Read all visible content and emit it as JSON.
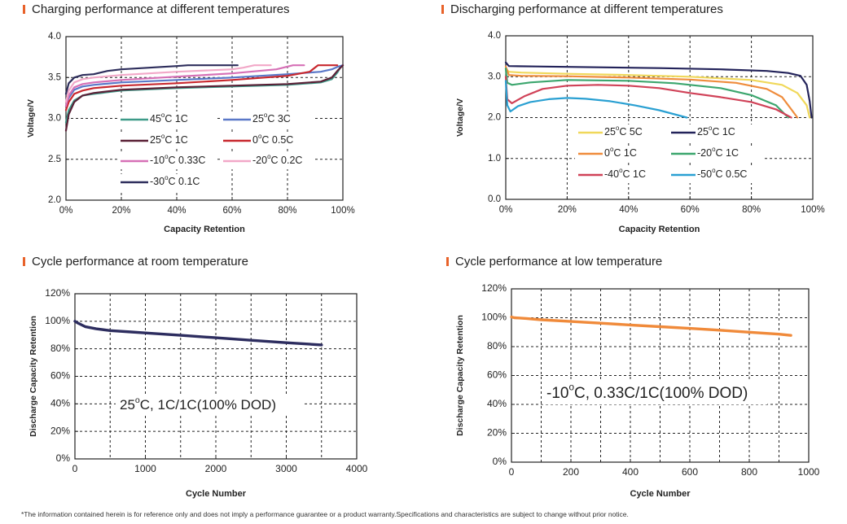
{
  "footnote": "*The information contained herein is for reference only and does not imply a performance guarantee or a product warranty.Specifications and characteristics are subject to change without prior notice.",
  "chart_data": [
    {
      "id": "charge",
      "type": "line",
      "title": "Charging performance at different temperatures",
      "xlabel": "Capacity Retention",
      "ylabel": "Voltage/V",
      "xlim": [
        0,
        100
      ],
      "ylim": [
        2.0,
        4.0
      ],
      "xticks": [
        0,
        20,
        40,
        60,
        80,
        100
      ],
      "xtick_labels": [
        "0%",
        "20%",
        "40%",
        "60%",
        "80%",
        "100%"
      ],
      "yticks": [
        2.0,
        2.5,
        3.0,
        3.5,
        4.0
      ],
      "ytick_labels": [
        "2.0",
        "2.5",
        "3.0",
        "3.5",
        "4.0"
      ],
      "grid": true,
      "legend_position": "center-left",
      "series": [
        {
          "name": "45°C 1C",
          "color": "#3d9a88",
          "x": [
            0,
            1,
            3,
            6,
            10,
            20,
            40,
            60,
            80,
            92,
            96,
            98,
            99
          ],
          "y": [
            2.95,
            3.1,
            3.22,
            3.28,
            3.3,
            3.34,
            3.37,
            3.39,
            3.41,
            3.44,
            3.48,
            3.56,
            3.62
          ]
        },
        {
          "name": "25°C 3C",
          "color": "#5a78c8",
          "x": [
            0,
            1,
            3,
            6,
            10,
            20,
            40,
            60,
            80,
            92,
            96,
            98,
            100
          ],
          "y": [
            3.15,
            3.25,
            3.35,
            3.39,
            3.41,
            3.44,
            3.47,
            3.5,
            3.54,
            3.57,
            3.6,
            3.63,
            3.65
          ]
        },
        {
          "name": "25°C 1C",
          "color": "#5a2036",
          "x": [
            0,
            1,
            3,
            6,
            10,
            20,
            40,
            60,
            80,
            92,
            96,
            98,
            100
          ],
          "y": [
            2.85,
            3.05,
            3.2,
            3.28,
            3.31,
            3.35,
            3.38,
            3.4,
            3.42,
            3.45,
            3.5,
            3.58,
            3.65
          ]
        },
        {
          "name": "0°C 0.5C",
          "color": "#c8282e",
          "x": [
            0,
            1,
            3,
            6,
            10,
            20,
            40,
            60,
            80,
            88,
            91,
            95,
            98
          ],
          "y": [
            3.1,
            3.2,
            3.3,
            3.34,
            3.37,
            3.4,
            3.43,
            3.47,
            3.52,
            3.57,
            3.65,
            3.65,
            3.65
          ]
        },
        {
          "name": "-10°C 0.33C",
          "color": "#d670b6",
          "x": [
            0,
            1,
            3,
            6,
            10,
            20,
            40,
            60,
            76,
            82,
            86
          ],
          "y": [
            3.15,
            3.28,
            3.38,
            3.42,
            3.44,
            3.47,
            3.51,
            3.55,
            3.6,
            3.65,
            3.65
          ]
        },
        {
          "name": "-20°C 0.2C",
          "color": "#f2a8c8",
          "x": [
            0,
            1,
            3,
            6,
            10,
            20,
            40,
            60,
            64,
            68,
            74
          ],
          "y": [
            3.2,
            3.34,
            3.44,
            3.48,
            3.5,
            3.53,
            3.57,
            3.6,
            3.62,
            3.65,
            3.65
          ]
        },
        {
          "name": "-30°C 0.1C",
          "color": "#2e2e5c",
          "x": [
            0,
            1,
            3,
            6,
            10,
            15,
            20,
            30,
            40,
            44,
            50,
            62
          ],
          "y": [
            3.3,
            3.43,
            3.5,
            3.53,
            3.54,
            3.58,
            3.6,
            3.62,
            3.64,
            3.65,
            3.65,
            3.65
          ]
        }
      ]
    },
    {
      "id": "discharge",
      "type": "line",
      "title": "Discharging performance at different temperatures",
      "xlabel": "Capacity Retention",
      "ylabel": "Voltage/V",
      "xlim": [
        0,
        100
      ],
      "ylim": [
        0.0,
        4.0
      ],
      "xticks": [
        0,
        20,
        40,
        60,
        80,
        100
      ],
      "xtick_labels": [
        "0%",
        "20%",
        "40%",
        "60%",
        "80%",
        "100%"
      ],
      "yticks": [
        0.0,
        1.0,
        2.0,
        3.0,
        4.0
      ],
      "ytick_labels": [
        "0.0",
        "1.0",
        "2.0",
        "3.0",
        "4.0"
      ],
      "grid": true,
      "legend_position": "bottom",
      "series": [
        {
          "name": "25°C 5C",
          "color": "#f0d85a",
          "x": [
            0,
            1,
            5,
            20,
            40,
            60,
            80,
            90,
            95,
            98,
            99
          ],
          "y": [
            3.2,
            3.12,
            3.1,
            3.07,
            3.04,
            3.0,
            2.92,
            2.8,
            2.6,
            2.3,
            2.0
          ]
        },
        {
          "name": "25°C 1C",
          "color": "#23235a",
          "x": [
            0,
            1,
            10,
            30,
            50,
            70,
            85,
            92,
            96,
            98,
            99,
            99.6
          ],
          "y": [
            3.35,
            3.26,
            3.25,
            3.23,
            3.21,
            3.18,
            3.14,
            3.09,
            3.02,
            2.8,
            2.4,
            2.0
          ]
        },
        {
          "name": "0°C 1C",
          "color": "#ef8c3c",
          "x": [
            0,
            1,
            5,
            20,
            40,
            60,
            75,
            85,
            90,
            93,
            95
          ],
          "y": [
            3.25,
            3.04,
            3.02,
            3.01,
            2.98,
            2.93,
            2.85,
            2.7,
            2.5,
            2.2,
            2.0
          ]
        },
        {
          "name": "-20°C 1C",
          "color": "#3ca66e",
          "x": [
            0,
            0.5,
            2,
            8,
            20,
            40,
            55,
            70,
            80,
            88,
            92
          ],
          "y": [
            3.2,
            2.85,
            2.8,
            2.86,
            2.92,
            2.9,
            2.84,
            2.72,
            2.55,
            2.3,
            2.0
          ]
        },
        {
          "name": "-40°C 1C",
          "color": "#d04258",
          "x": [
            0,
            0.5,
            2,
            6,
            12,
            20,
            30,
            40,
            50,
            60,
            70,
            80,
            88,
            93
          ],
          "y": [
            3.0,
            2.45,
            2.35,
            2.52,
            2.7,
            2.78,
            2.8,
            2.78,
            2.72,
            2.6,
            2.5,
            2.38,
            2.2,
            2.0
          ]
        },
        {
          "name": "-50°C 0.5C",
          "color": "#2aa0d2",
          "x": [
            0,
            0.5,
            1.5,
            4,
            8,
            14,
            20,
            26,
            34,
            42,
            50,
            56,
            59
          ],
          "y": [
            2.9,
            2.3,
            2.15,
            2.28,
            2.38,
            2.45,
            2.48,
            2.46,
            2.4,
            2.3,
            2.18,
            2.06,
            2.0
          ]
        }
      ]
    },
    {
      "id": "cycle_room",
      "type": "line",
      "title": "Cycle performance at room temperature",
      "xlabel": "Cycle Number",
      "ylabel": "Discharge Capacity Retention",
      "xlim": [
        0,
        4000
      ],
      "ylim": [
        0,
        120
      ],
      "xticks": [
        0,
        1000,
        2000,
        3000,
        4000
      ],
      "xtick_labels": [
        "0",
        "1000",
        "2000",
        "3000",
        "4000"
      ],
      "yticks": [
        0,
        20,
        40,
        60,
        80,
        100,
        120
      ],
      "ytick_labels": [
        "0%",
        "20%",
        "40%",
        "60%",
        "80%",
        "100%",
        "120%"
      ],
      "grid": true,
      "annotation": "25°C, 1C/1C(100% DOD)",
      "series": [
        {
          "name": "25°C, 1C/1C(100% DOD)",
          "color": "#2d2d5f",
          "x": [
            0,
            50,
            150,
            300,
            500,
            800,
            1000,
            1500,
            2000,
            2500,
            3000,
            3500
          ],
          "y": [
            100,
            98.5,
            96,
            94.5,
            93.2,
            92.2,
            91.5,
            89.8,
            88,
            86.2,
            84.4,
            82.8
          ]
        }
      ]
    },
    {
      "id": "cycle_low",
      "type": "line",
      "title": "Cycle performance at low temperature",
      "xlabel": "Cycle Number",
      "ylabel": "Discharge Capacity Retention",
      "xlim": [
        0,
        1000
      ],
      "ylim": [
        0,
        120
      ],
      "xticks": [
        0,
        200,
        400,
        600,
        800,
        1000
      ],
      "xtick_labels": [
        "0",
        "200",
        "400",
        "600",
        "800",
        "1000"
      ],
      "yticks": [
        0,
        20,
        40,
        60,
        80,
        100,
        120
      ],
      "ytick_labels": [
        "0%",
        "20%",
        "40%",
        "60%",
        "80%",
        "100%",
        "120%"
      ],
      "grid": true,
      "annotation": "-10°C, 0.33C/1C(100% DOD)",
      "series": [
        {
          "name": "-10°C, 0.33C/1C(100% DOD)",
          "color": "#f08a3a",
          "x": [
            0,
            10,
            50,
            100,
            200,
            300,
            400,
            500,
            600,
            700,
            800,
            900,
            940
          ],
          "y": [
            100.5,
            100,
            99.5,
            98.6,
            97.4,
            96.2,
            95,
            93.8,
            92.6,
            91.4,
            90,
            88.6,
            87.8
          ]
        }
      ]
    }
  ]
}
